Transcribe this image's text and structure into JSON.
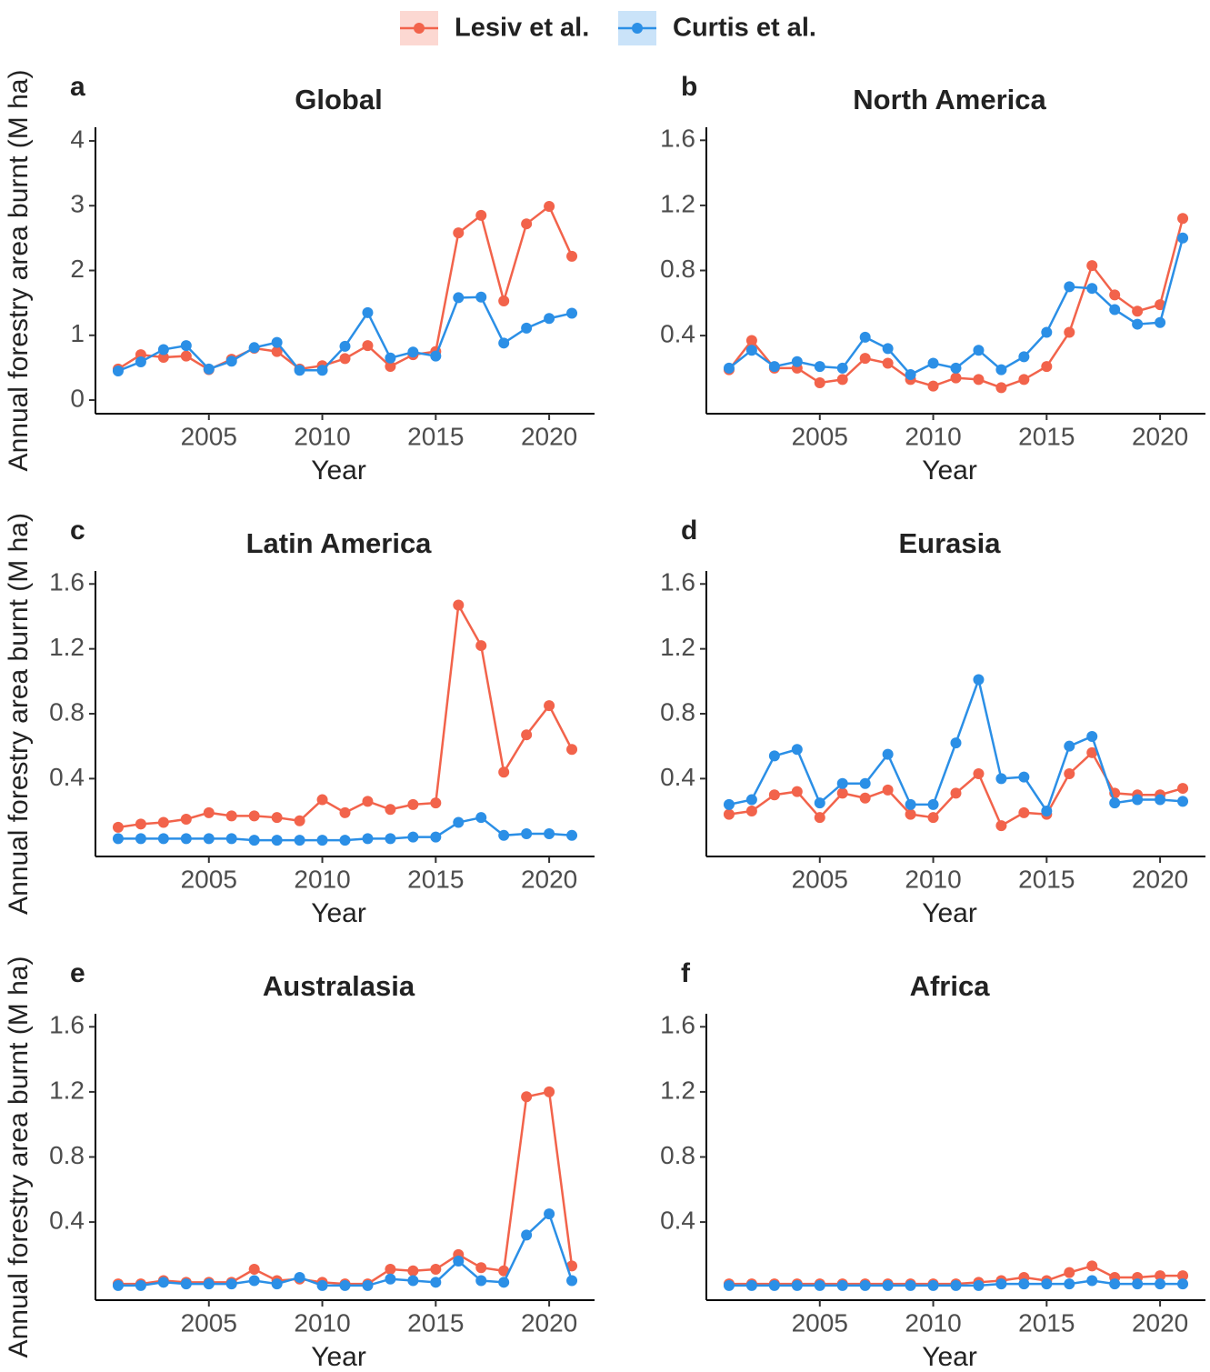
{
  "chart_data": [
    {
      "type": "line",
      "panel": "a",
      "title": "Global",
      "x_label": "Year",
      "y_label": "Annual forestry area burnt (M ha)",
      "x": [
        2001,
        2002,
        2003,
        2004,
        2005,
        2006,
        2007,
        2008,
        2009,
        2010,
        2011,
        2012,
        2013,
        2014,
        2015,
        2016,
        2017,
        2018,
        2019,
        2020,
        2021
      ],
      "series": [
        {
          "name": "Lesiv et al.",
          "color": "#f2634b",
          "values": [
            0.48,
            0.7,
            0.66,
            0.68,
            0.47,
            0.63,
            0.8,
            0.75,
            0.48,
            0.53,
            0.64,
            0.84,
            0.52,
            0.7,
            0.75,
            2.58,
            2.85,
            1.53,
            2.72,
            2.99,
            2.22
          ]
        },
        {
          "name": "Curtis et al.",
          "color": "#2b8fe6",
          "values": [
            0.45,
            0.59,
            0.78,
            0.84,
            0.48,
            0.6,
            0.81,
            0.89,
            0.46,
            0.46,
            0.83,
            1.35,
            0.65,
            0.74,
            0.68,
            1.58,
            1.59,
            0.88,
            1.11,
            1.26,
            1.34
          ]
        }
      ],
      "xlim": [
        2000,
        2022
      ],
      "xticks": [
        2005,
        2010,
        2015,
        2020
      ],
      "ylim": [
        -0.21,
        4.21
      ],
      "yticks": [
        0,
        1,
        2,
        3,
        4
      ]
    },
    {
      "type": "line",
      "panel": "b",
      "title": "North America",
      "x_label": "Year",
      "x": [
        2001,
        2002,
        2003,
        2004,
        2005,
        2006,
        2007,
        2008,
        2009,
        2010,
        2011,
        2012,
        2013,
        2014,
        2015,
        2016,
        2017,
        2018,
        2019,
        2020,
        2021
      ],
      "series": [
        {
          "name": "Lesiv et al.",
          "color": "#f2634b",
          "values": [
            0.19,
            0.37,
            0.2,
            0.2,
            0.11,
            0.13,
            0.26,
            0.23,
            0.13,
            0.09,
            0.14,
            0.13,
            0.08,
            0.13,
            0.21,
            0.42,
            0.83,
            0.65,
            0.55,
            0.59,
            1.12
          ]
        },
        {
          "name": "Curtis et al.",
          "color": "#2b8fe6",
          "values": [
            0.2,
            0.31,
            0.21,
            0.24,
            0.21,
            0.2,
            0.39,
            0.32,
            0.16,
            0.23,
            0.2,
            0.31,
            0.19,
            0.27,
            0.42,
            0.7,
            0.69,
            0.56,
            0.47,
            0.48,
            1.0
          ]
        }
      ],
      "xlim": [
        2000,
        2022
      ],
      "xticks": [
        2005,
        2010,
        2015,
        2020
      ],
      "ylim": [
        -0.08,
        1.68
      ],
      "yticks": [
        0.4,
        0.8,
        1.2,
        1.6
      ]
    },
    {
      "type": "line",
      "panel": "c",
      "title": "Latin America",
      "x_label": "Year",
      "y_label": "Annual forestry area burnt (M ha)",
      "x": [
        2001,
        2002,
        2003,
        2004,
        2005,
        2006,
        2007,
        2008,
        2009,
        2010,
        2011,
        2012,
        2013,
        2014,
        2015,
        2016,
        2017,
        2018,
        2019,
        2020,
        2021
      ],
      "series": [
        {
          "name": "Lesiv et al.",
          "color": "#f2634b",
          "values": [
            0.1,
            0.12,
            0.13,
            0.15,
            0.19,
            0.17,
            0.17,
            0.16,
            0.14,
            0.27,
            0.19,
            0.26,
            0.21,
            0.24,
            0.25,
            1.47,
            1.22,
            0.44,
            0.67,
            0.85,
            0.58
          ]
        },
        {
          "name": "Curtis et al.",
          "color": "#2b8fe6",
          "values": [
            0.03,
            0.03,
            0.03,
            0.03,
            0.03,
            0.03,
            0.02,
            0.02,
            0.02,
            0.02,
            0.02,
            0.03,
            0.03,
            0.04,
            0.04,
            0.13,
            0.16,
            0.05,
            0.06,
            0.06,
            0.05
          ]
        }
      ],
      "xlim": [
        2000,
        2022
      ],
      "xticks": [
        2005,
        2010,
        2015,
        2020
      ],
      "ylim": [
        -0.08,
        1.68
      ],
      "yticks": [
        0.4,
        0.8,
        1.2,
        1.6
      ]
    },
    {
      "type": "line",
      "panel": "d",
      "title": "Eurasia",
      "x_label": "Year",
      "x": [
        2001,
        2002,
        2003,
        2004,
        2005,
        2006,
        2007,
        2008,
        2009,
        2010,
        2011,
        2012,
        2013,
        2014,
        2015,
        2016,
        2017,
        2018,
        2019,
        2020,
        2021
      ],
      "series": [
        {
          "name": "Lesiv et al.",
          "color": "#f2634b",
          "values": [
            0.18,
            0.2,
            0.3,
            0.32,
            0.16,
            0.31,
            0.28,
            0.33,
            0.18,
            0.16,
            0.31,
            0.43,
            0.11,
            0.19,
            0.18,
            0.43,
            0.56,
            0.31,
            0.3,
            0.3,
            0.34
          ]
        },
        {
          "name": "Curtis et al.",
          "color": "#2b8fe6",
          "values": [
            0.24,
            0.27,
            0.54,
            0.58,
            0.25,
            0.37,
            0.37,
            0.55,
            0.24,
            0.24,
            0.62,
            1.01,
            0.4,
            0.41,
            0.2,
            0.6,
            0.66,
            0.25,
            0.27,
            0.27,
            0.26
          ]
        }
      ],
      "xlim": [
        2000,
        2022
      ],
      "xticks": [
        2005,
        2010,
        2015,
        2020
      ],
      "ylim": [
        -0.08,
        1.68
      ],
      "yticks": [
        0.4,
        0.8,
        1.2,
        1.6
      ]
    },
    {
      "type": "line",
      "panel": "e",
      "title": "Australasia",
      "x_label": "Year",
      "y_label": "Annual forestry area burnt (M ha)",
      "x": [
        2001,
        2002,
        2003,
        2004,
        2005,
        2006,
        2007,
        2008,
        2009,
        2010,
        2011,
        2012,
        2013,
        2014,
        2015,
        2016,
        2017,
        2018,
        2019,
        2020,
        2021
      ],
      "series": [
        {
          "name": "Lesiv et al.",
          "color": "#f2634b",
          "values": [
            0.02,
            0.02,
            0.04,
            0.03,
            0.03,
            0.03,
            0.11,
            0.04,
            0.05,
            0.03,
            0.02,
            0.02,
            0.11,
            0.1,
            0.11,
            0.2,
            0.12,
            0.1,
            1.17,
            1.2,
            0.13
          ]
        },
        {
          "name": "Curtis et al.",
          "color": "#2b8fe6",
          "values": [
            0.01,
            0.01,
            0.03,
            0.02,
            0.02,
            0.02,
            0.04,
            0.02,
            0.06,
            0.01,
            0.01,
            0.01,
            0.05,
            0.04,
            0.03,
            0.16,
            0.04,
            0.03,
            0.32,
            0.45,
            0.04
          ]
        }
      ],
      "xlim": [
        2000,
        2022
      ],
      "xticks": [
        2005,
        2010,
        2015,
        2020
      ],
      "ylim": [
        -0.08,
        1.68
      ],
      "yticks": [
        0.4,
        0.8,
        1.2,
        1.6
      ]
    },
    {
      "type": "line",
      "panel": "f",
      "title": "Africa",
      "x_label": "Year",
      "x": [
        2001,
        2002,
        2003,
        2004,
        2005,
        2006,
        2007,
        2008,
        2009,
        2010,
        2011,
        2012,
        2013,
        2014,
        2015,
        2016,
        2017,
        2018,
        2019,
        2020,
        2021
      ],
      "series": [
        {
          "name": "Lesiv et al.",
          "color": "#f2634b",
          "values": [
            0.02,
            0.02,
            0.02,
            0.02,
            0.02,
            0.02,
            0.02,
            0.02,
            0.02,
            0.02,
            0.02,
            0.03,
            0.04,
            0.06,
            0.04,
            0.09,
            0.13,
            0.06,
            0.06,
            0.07,
            0.07
          ]
        },
        {
          "name": "Curtis et al.",
          "color": "#2b8fe6",
          "values": [
            0.01,
            0.01,
            0.01,
            0.01,
            0.01,
            0.01,
            0.01,
            0.01,
            0.01,
            0.01,
            0.01,
            0.01,
            0.02,
            0.02,
            0.02,
            0.02,
            0.04,
            0.02,
            0.02,
            0.02,
            0.02
          ]
        }
      ],
      "xlim": [
        2000,
        2022
      ],
      "xticks": [
        2005,
        2010,
        2015,
        2020
      ],
      "ylim": [
        -0.08,
        1.68
      ],
      "yticks": [
        0.4,
        0.8,
        1.2,
        1.6
      ]
    }
  ]
}
